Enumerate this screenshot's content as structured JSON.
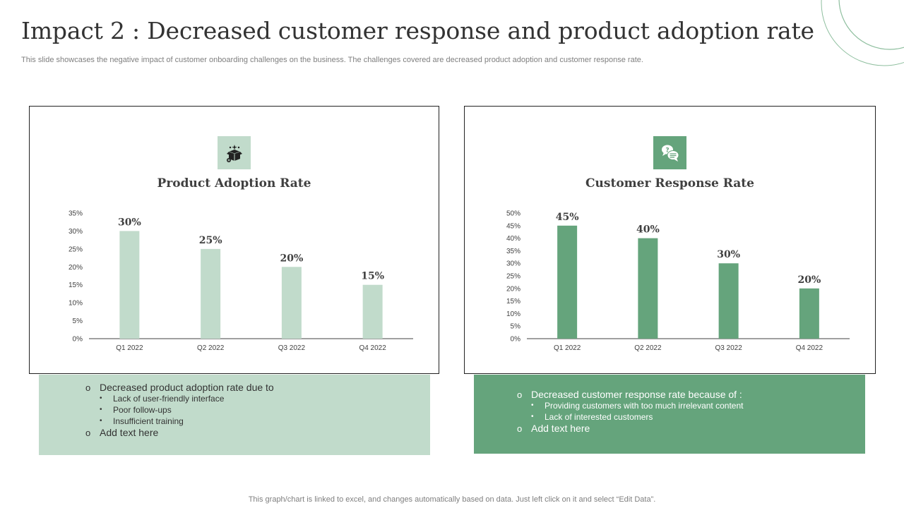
{
  "header": {
    "title": "Impact 2 : Decreased customer response and product adoption rate",
    "subtitle": "This slide showcases the negative impact of customer onboarding challenges on the business. The challenges covered are decreased product adoption and customer response rate."
  },
  "colors": {
    "light_green": "#c1dbcb",
    "dark_green": "#65a47c"
  },
  "left_panel": {
    "icon": "product-box-icon",
    "notes": {
      "main": "Decreased product adoption rate due to",
      "items": [
        "Lack of user-friendly  interface",
        "Poor follow-ups",
        "Insufficient  training"
      ],
      "extra": "Add text here"
    }
  },
  "right_panel": {
    "icon": "chat-question-icon",
    "notes": {
      "main": "Decreased customer response rate because of :",
      "items": [
        "Providing  customers with too much irrelevant  content",
        "Lack of interested customers"
      ],
      "extra": "Add text here"
    }
  },
  "chart_data": [
    {
      "type": "bar",
      "title": "Product Adoption Rate",
      "categories": [
        "Q1 2022",
        "Q2 2022",
        "Q3 2022",
        "Q4 2022"
      ],
      "values": [
        30,
        25,
        20,
        15
      ],
      "value_labels": [
        "30%",
        "25%",
        "20%",
        "15%"
      ],
      "yticks": [
        "0%",
        "5%",
        "10%",
        "15%",
        "20%",
        "25%",
        "30%",
        "35%"
      ],
      "ylim": [
        0,
        35
      ],
      "color": "#c1dbcb",
      "xlabel": "",
      "ylabel": ""
    },
    {
      "type": "bar",
      "title": "Customer Response Rate",
      "categories": [
        "Q1 2022",
        "Q2 2022",
        "Q3 2022",
        "Q4 2022"
      ],
      "values": [
        45,
        40,
        30,
        20
      ],
      "value_labels": [
        "45%",
        "40%",
        "30%",
        "20%"
      ],
      "yticks": [
        "0%",
        "5%",
        "10%",
        "15%",
        "20%",
        "25%",
        "30%",
        "35%",
        "40%",
        "45%",
        "50%"
      ],
      "ylim": [
        0,
        50
      ],
      "color": "#65a47c",
      "xlabel": "",
      "ylabel": ""
    }
  ],
  "footer": "This graph/chart is linked to excel,  and changes automatically based on data. Just left click on it and select “Edit Data”."
}
